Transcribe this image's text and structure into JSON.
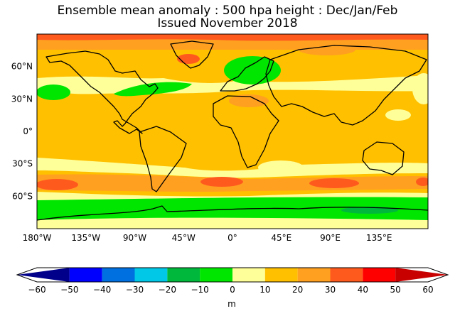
{
  "title": {
    "line1": "Ensemble mean anomaly : 500 hpa height : Dec/Jan/Feb",
    "line2": "Issued November 2018"
  },
  "map": {
    "lon_ticks": [
      "180°W",
      "135°W",
      "90°W",
      "45°W",
      "0°",
      "45°E",
      "90°E",
      "135°E"
    ],
    "lat_ticks": [
      "60°N",
      "30°N",
      "0°",
      "30°S",
      "60°S"
    ]
  },
  "colorbar": {
    "ticks": [
      "−60",
      "−50",
      "−40",
      "−30",
      "−20",
      "−10",
      "0",
      "10",
      "20",
      "30",
      "40",
      "50",
      "60"
    ],
    "unit": "m",
    "colors": [
      "#00008b",
      "#0000ff",
      "#0070e0",
      "#00c8e6",
      "#00b83c",
      "#00e600",
      "#ffff99",
      "#ffc000",
      "#ffa020",
      "#ff5a1e",
      "#ff0000",
      "#c80000"
    ]
  }
}
